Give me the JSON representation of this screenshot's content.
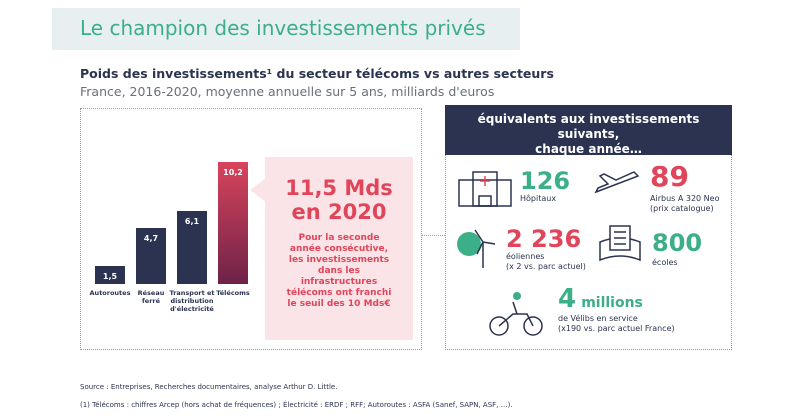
{
  "title": "Le champion des investissements privés",
  "subtitle": "Poids des investissements¹ du secteur télécoms vs autres secteurs",
  "subtitle2": "France, 2016-2020, moyenne annuelle sur 5 ans, milliards d'euros",
  "chart_data": {
    "type": "bar",
    "categories": [
      "Autoroutes",
      "Réseau ferré",
      "Transport et distribution d'électricité",
      "Télécoms"
    ],
    "values": [
      1.5,
      4.7,
      6.1,
      10.2
    ],
    "value_labels": [
      "1,5",
      "4,7",
      "6,1",
      "10,2"
    ],
    "colors": [
      "#2b3350",
      "#2b3350",
      "#2b3350",
      "#d8445c"
    ]
  },
  "callout": {
    "headline": "11,5 Mds\nen 2020",
    "text": "Pour la seconde année consécutive, les investissements dans les infrastructures télécoms ont franchi le seuil des 10 Mds€"
  },
  "panel": {
    "header": "équivalents aux investissements suivants,\nchaque année…",
    "items": [
      {
        "number": "126",
        "label": "Hôpitaux"
      },
      {
        "number": "89",
        "label": "Airbus A 320 Neo\n(prix catalogue)"
      },
      {
        "number": "2 236",
        "label": "éoliennes\n(x 2 vs. parc actuel)"
      },
      {
        "number": "800",
        "label": "écoles"
      },
      {
        "number": "4",
        "unit": "millions",
        "label": "de Vélibs en service\n(x190 vs. parc actuel France)"
      }
    ]
  },
  "footer": [
    "Source : Entreprises, Recherches documentaires, analyse Arthur D. Little.",
    "(1) Télécoms : chiffres Arcep (hors achat de fréquences) ; Électricité : ERDF ; RFF;  Autoroutes : ASFA (Sanef, SAPN, ASF, …)."
  ]
}
